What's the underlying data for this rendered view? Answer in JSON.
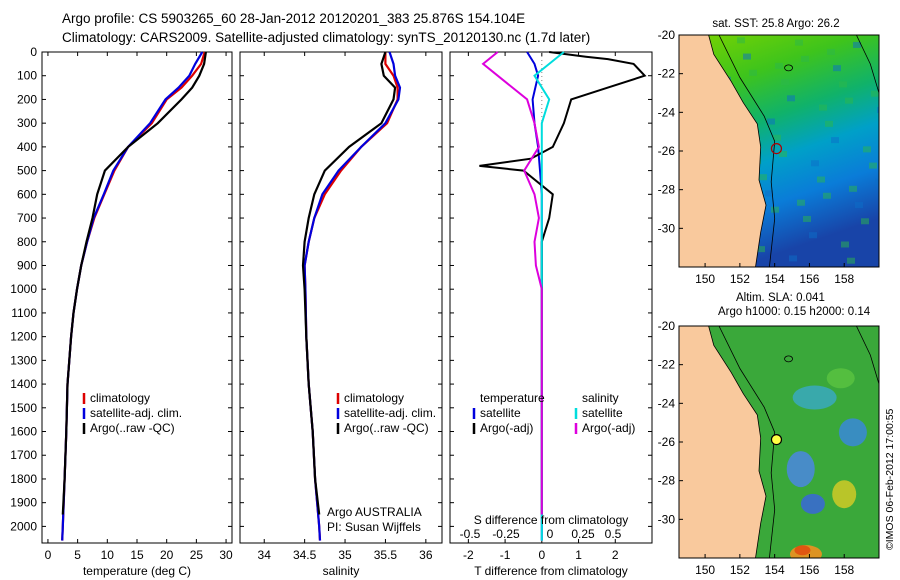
{
  "header": {
    "line1": "Argo profile: CS 5903265_60 28-Jan-2012 20120201_383 25.876S 154.104E",
    "line2": "Climatology: CARS2009. Satellite-adjusted climatology: synTS_20120130.nc (1.7d later)"
  },
  "credit": "©IMOS 06-Feb-2012 17:00:55",
  "colors": {
    "climatology": "#dd0000",
    "satellite": "#0000dd",
    "argo": "#000000",
    "sal_sat": "#00dddd",
    "sal_argo": "#dd00dd",
    "land": "#f9c99d"
  },
  "chart_data": [
    {
      "type": "line",
      "xlabel": "temperature (deg C)",
      "ylabel": "",
      "xlim": [
        -1,
        31
      ],
      "ylim": [
        2070,
        0
      ],
      "xticks": [
        "0",
        "5",
        "10",
        "15",
        "20",
        "25",
        "30"
      ],
      "yticks": [
        "0",
        "100",
        "200",
        "300",
        "400",
        "500",
        "600",
        "700",
        "800",
        "900",
        "1000",
        "1100",
        "1200",
        "1300",
        "1400",
        "1500",
        "1600",
        "1700",
        "1800",
        "1900",
        "2000"
      ],
      "legend": [
        "climatology",
        "satellite-adj. clim.",
        "Argo(..raw -QC)"
      ],
      "series": [
        {
          "name": "climatology",
          "points": [
            [
              26.4,
              0
            ],
            [
              25.8,
              50
            ],
            [
              24.3,
              100
            ],
            [
              22.5,
              150
            ],
            [
              20.0,
              200
            ],
            [
              17.5,
              300
            ],
            [
              13.5,
              400
            ],
            [
              11.2,
              500
            ],
            [
              9.5,
              600
            ],
            [
              7.8,
              700
            ],
            [
              6.6,
              800
            ],
            [
              5.6,
              900
            ],
            [
              4.9,
              1000
            ],
            [
              4.3,
              1100
            ],
            [
              3.9,
              1200
            ],
            [
              3.6,
              1300
            ],
            [
              3.3,
              1400
            ],
            [
              3.1,
              1600
            ],
            [
              2.8,
              1800
            ],
            [
              2.5,
              2000
            ],
            [
              2.4,
              2060
            ]
          ]
        },
        {
          "name": "satellite-adj. clim.",
          "points": [
            [
              26.0,
              0
            ],
            [
              24.8,
              50
            ],
            [
              23.8,
              100
            ],
            [
              22.0,
              150
            ],
            [
              19.8,
              200
            ],
            [
              17.2,
              300
            ],
            [
              13.5,
              400
            ],
            [
              11.0,
              500
            ],
            [
              9.4,
              600
            ],
            [
              7.7,
              700
            ],
            [
              6.6,
              800
            ],
            [
              5.6,
              900
            ],
            [
              4.9,
              1000
            ],
            [
              4.3,
              1100
            ],
            [
              3.9,
              1200
            ],
            [
              3.6,
              1300
            ],
            [
              3.3,
              1400
            ],
            [
              3.1,
              1600
            ],
            [
              2.8,
              1800
            ],
            [
              2.5,
              2000
            ],
            [
              2.4,
              2060
            ]
          ]
        },
        {
          "name": "Argo(..raw -QC)",
          "points": [
            [
              26.6,
              0
            ],
            [
              26.3,
              50
            ],
            [
              25.5,
              100
            ],
            [
              24.3,
              150
            ],
            [
              22.5,
              200
            ],
            [
              18.5,
              300
            ],
            [
              13.5,
              400
            ],
            [
              9.6,
              500
            ],
            [
              8.3,
              600
            ],
            [
              7.5,
              700
            ],
            [
              6.5,
              800
            ],
            [
              5.6,
              900
            ],
            [
              4.9,
              1000
            ],
            [
              4.3,
              1100
            ],
            [
              3.9,
              1200
            ],
            [
              3.6,
              1300
            ],
            [
              3.3,
              1400
            ],
            [
              3.1,
              1600
            ],
            [
              2.8,
              1800
            ],
            [
              2.5,
              1950
            ]
          ]
        }
      ]
    },
    {
      "type": "line",
      "xlabel": "salinity",
      "xlim": [
        33.7,
        36.2
      ],
      "ylim": [
        2070,
        0
      ],
      "xticks": [
        "34",
        "34.5",
        "35",
        "35.5",
        "36"
      ],
      "legend": [
        "climatology",
        "satellite-adj. clim.",
        "Argo(..raw -QC)"
      ],
      "annotation": [
        "Argo AUSTRALIA",
        "PI: Susan Wijffels"
      ],
      "series": [
        {
          "name": "climatology",
          "points": [
            [
              35.5,
              0
            ],
            [
              35.5,
              50
            ],
            [
              35.6,
              100
            ],
            [
              35.65,
              150
            ],
            [
              35.65,
              200
            ],
            [
              35.52,
              300
            ],
            [
              35.2,
              400
            ],
            [
              34.95,
              500
            ],
            [
              34.75,
              600
            ],
            [
              34.62,
              700
            ],
            [
              34.55,
              800
            ],
            [
              34.5,
              900
            ],
            [
              34.51,
              1000
            ],
            [
              34.52,
              1200
            ],
            [
              34.55,
              1400
            ],
            [
              34.6,
              1600
            ],
            [
              34.63,
              1800
            ],
            [
              34.68,
              2000
            ],
            [
              34.69,
              2060
            ]
          ]
        },
        {
          "name": "satellite-adj. clim.",
          "points": [
            [
              35.55,
              0
            ],
            [
              35.6,
              50
            ],
            [
              35.62,
              100
            ],
            [
              35.68,
              150
            ],
            [
              35.66,
              200
            ],
            [
              35.5,
              300
            ],
            [
              35.2,
              400
            ],
            [
              34.92,
              500
            ],
            [
              34.72,
              600
            ],
            [
              34.62,
              700
            ],
            [
              34.55,
              800
            ],
            [
              34.5,
              900
            ],
            [
              34.51,
              1000
            ],
            [
              34.52,
              1200
            ],
            [
              34.55,
              1400
            ],
            [
              34.6,
              1600
            ],
            [
              34.63,
              1800
            ],
            [
              34.68,
              2000
            ],
            [
              34.69,
              2060
            ]
          ]
        },
        {
          "name": "Argo(..raw -QC)",
          "points": [
            [
              35.5,
              0
            ],
            [
              35.45,
              50
            ],
            [
              35.48,
              100
            ],
            [
              35.62,
              150
            ],
            [
              35.6,
              200
            ],
            [
              35.45,
              300
            ],
            [
              35.05,
              400
            ],
            [
              34.75,
              500
            ],
            [
              34.62,
              600
            ],
            [
              34.55,
              700
            ],
            [
              34.5,
              800
            ],
            [
              34.48,
              900
            ],
            [
              34.5,
              1000
            ],
            [
              34.52,
              1200
            ],
            [
              34.55,
              1400
            ],
            [
              34.6,
              1600
            ],
            [
              34.63,
              1800
            ],
            [
              34.68,
              1950
            ]
          ]
        }
      ]
    },
    {
      "type": "line",
      "xlabel": "T difference from climatology",
      "title_bottom": "S difference from climatology",
      "xlim": [
        -2.5,
        3.0
      ],
      "ylim": [
        2070,
        0
      ],
      "xticks": [
        "-2",
        "-1",
        "0",
        "1",
        "2"
      ],
      "top_ticks": [
        "-0.5",
        "-0.25",
        "0",
        "0.25",
        "0.5"
      ],
      "legend_temperature": [
        "temperature",
        "satellite",
        "Argo(-adj)"
      ],
      "legend_salinity": [
        "salinity",
        "satellite",
        "Argo(-adj)"
      ],
      "series": [
        {
          "name": "T satellite",
          "points": [
            [
              -0.4,
              0
            ],
            [
              -0.2,
              50
            ],
            [
              -0.1,
              100
            ],
            [
              -0.25,
              200
            ],
            [
              -0.2,
              300
            ],
            [
              -0.1,
              400
            ],
            [
              -0.05,
              500
            ],
            [
              0,
              600
            ],
            [
              0,
              700
            ],
            [
              0,
              1000
            ],
            [
              0,
              2060
            ]
          ]
        },
        {
          "name": "T Argo(-adj)",
          "points": [
            [
              0.2,
              0
            ],
            [
              1.2,
              20
            ],
            [
              1.8,
              30
            ],
            [
              2.5,
              50
            ],
            [
              2.8,
              100
            ],
            [
              1.8,
              150
            ],
            [
              0.8,
              200
            ],
            [
              0.6,
              300
            ],
            [
              0.3,
              400
            ],
            [
              -0.3,
              450
            ],
            [
              -1.7,
              480
            ],
            [
              -0.5,
              500
            ],
            [
              0.3,
              600
            ],
            [
              0.2,
              700
            ],
            [
              0,
              800
            ],
            [
              0,
              1000
            ],
            [
              0,
              1950
            ]
          ]
        },
        {
          "name": "S satellite",
          "points": [
            [
              0.15,
              0
            ],
            [
              0.05,
              50
            ],
            [
              -0.05,
              100
            ],
            [
              0.05,
              200
            ],
            [
              0.0,
              300
            ],
            [
              0.0,
              400
            ],
            [
              0.0,
              500
            ],
            [
              0.0,
              600
            ],
            [
              0.0,
              700
            ],
            [
              0.0,
              800
            ],
            [
              0.0,
              1000
            ],
            [
              0.0,
              2060
            ]
          ]
        },
        {
          "name": "S Argo(-adj)",
          "points": [
            [
              -0.3,
              0
            ],
            [
              -0.4,
              50
            ],
            [
              -0.3,
              100
            ],
            [
              -0.1,
              200
            ],
            [
              -0.05,
              300
            ],
            [
              -0.02,
              400
            ],
            [
              -0.12,
              500
            ],
            [
              -0.05,
              600
            ],
            [
              -0.02,
              700
            ],
            [
              -0.05,
              800
            ],
            [
              -0.04,
              900
            ],
            [
              0,
              1000
            ],
            [
              0,
              1950
            ]
          ]
        }
      ]
    },
    {
      "type": "heatmap",
      "title": "sat. SST: 25.8  Argo: 26.2",
      "xlim": [
        148.5,
        160
      ],
      "ylim": [
        -32,
        -20
      ],
      "xticks": [
        "150",
        "152",
        "154",
        "156",
        "158"
      ],
      "yticks": [
        "-20",
        "-22",
        "-24",
        "-26",
        "-28",
        "-30"
      ],
      "marker": [
        154.104,
        -25.876
      ]
    },
    {
      "type": "heatmap",
      "title": "Altim. SLA: 0.041",
      "subtitle": "Argo h1000: 0.15 h2000: 0.14",
      "xlim": [
        148.5,
        160
      ],
      "ylim": [
        -32,
        -20
      ],
      "xticks": [
        "150",
        "152",
        "154",
        "156",
        "158"
      ],
      "yticks": [
        "-20",
        "-22",
        "-24",
        "-26",
        "-28",
        "-30"
      ],
      "marker": [
        154.104,
        -25.876
      ]
    }
  ]
}
